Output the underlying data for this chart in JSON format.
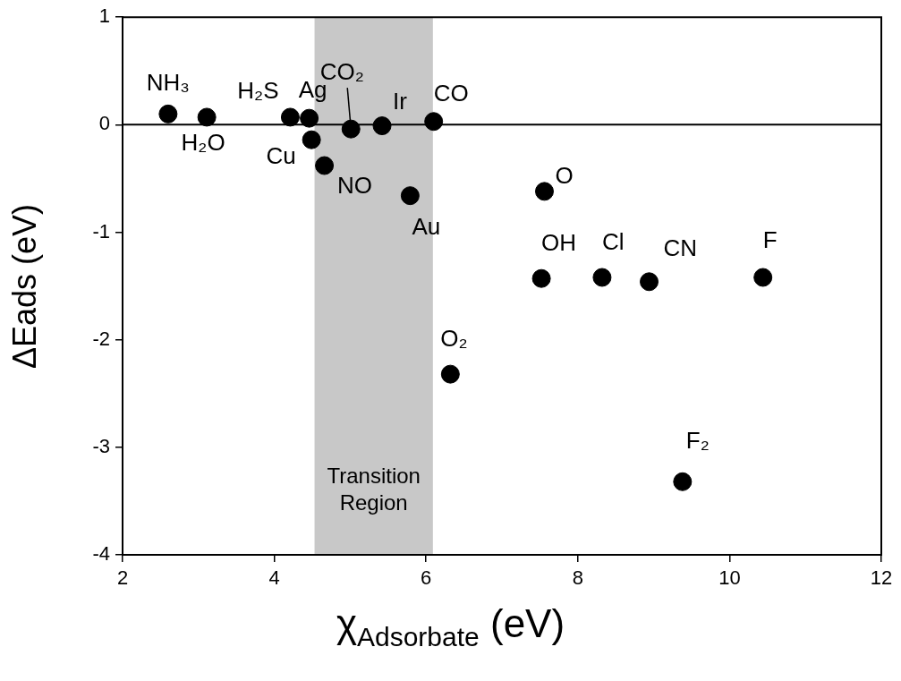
{
  "chart_data": {
    "type": "scatter",
    "xlabel": "χ$_{Adsorbate}$ (eV)",
    "ylabel": "ΔEads (eV)",
    "x": [
      2.6,
      3.11,
      4.21,
      4.46,
      4.49,
      4.66,
      5.01,
      5.42,
      5.79,
      6.1,
      6.32,
      7.56,
      7.52,
      8.32,
      8.94,
      10.44,
      9.38
    ],
    "series": [
      {
        "color": "#000000",
        "values": [
          0.1,
          0.07,
          0.07,
          0.06,
          -0.14,
          -0.38,
          -0.04,
          -0.01,
          -0.66,
          0.03,
          -2.32,
          -0.62,
          -1.43,
          -1.42,
          -1.46,
          -1.42,
          -3.32
        ]
      }
    ],
    "xlim": [
      2,
      12
    ],
    "xticks": [
      2,
      4,
      6,
      8,
      10,
      12
    ],
    "ylim": [
      -4,
      1
    ],
    "yticks": [
      -4,
      -3,
      -2,
      -1,
      0,
      1
    ],
    "marker": "circle",
    "grid": false,
    "legend": false,
    "ref_lines": [
      {
        "axis": "y",
        "value": 0,
        "color": "#000000"
      }
    ],
    "bands": [
      {
        "axis": "x",
        "from": 4.53,
        "to": 6.09,
        "label": "Transition Region",
        "color": "#c8c8c8"
      }
    ],
    "annotations": [
      {
        "text": "NH₃",
        "x": 2.6,
        "y": 0.1
      },
      {
        "text": "H₂O",
        "x": 3.11,
        "y": 0.07
      },
      {
        "text": "H₂S",
        "x": 4.21,
        "y": 0.07
      },
      {
        "text": "Ag",
        "x": 4.46,
        "y": 0.06
      },
      {
        "text": "Cu",
        "x": 4.49,
        "y": -0.14
      },
      {
        "text": "NO",
        "x": 4.66,
        "y": -0.38
      },
      {
        "text": "CO₂",
        "x": 5.01,
        "y": -0.04
      },
      {
        "text": "Ir",
        "x": 5.42,
        "y": -0.01
      },
      {
        "text": "Au",
        "x": 5.79,
        "y": -0.66
      },
      {
        "text": "CO",
        "x": 6.1,
        "y": 0.03
      },
      {
        "text": "O₂",
        "x": 6.32,
        "y": -2.32
      },
      {
        "text": "O",
        "x": 7.56,
        "y": -0.62
      },
      {
        "text": "OH",
        "x": 7.52,
        "y": -1.43
      },
      {
        "text": "Cl",
        "x": 8.32,
        "y": -1.42
      },
      {
        "text": "CN",
        "x": 8.94,
        "y": -1.46
      },
      {
        "text": "F",
        "x": 10.44,
        "y": -1.42
      },
      {
        "text": "F₂",
        "x": 9.38,
        "y": -3.32
      }
    ]
  }
}
